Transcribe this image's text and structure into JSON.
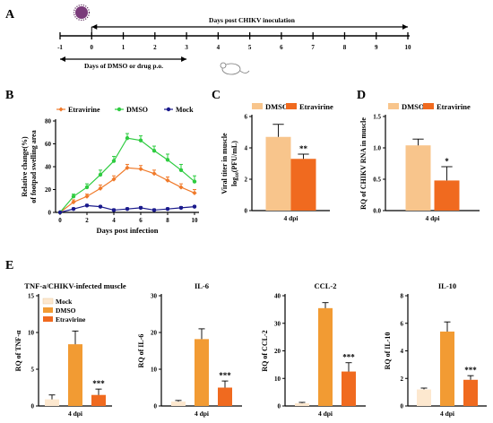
{
  "colors": {
    "dmso_light": "#f8c58c",
    "etravirine": "#f06a1f",
    "dmso_e": "#f29b33",
    "mock_bar": "#fde8cf",
    "green": "#2ecc40",
    "navy": "#1a1a8c",
    "orange_line": "#f07a2a",
    "virus": "#7a3b7a"
  },
  "panels": {
    "A": "A",
    "B": "B",
    "C": "C",
    "D": "D",
    "E": "E"
  },
  "timeline": {
    "top_label": "Days post CHIKV inoculation",
    "bottom_label": "Days of DMSO or drug p.o.",
    "ticks": [
      "-1",
      "0",
      "1",
      "2",
      "3",
      "4",
      "5",
      "6",
      "7",
      "8",
      "9",
      "10"
    ],
    "virus_icon": "virus-icon",
    "mouse_icon": "mouse-icon"
  },
  "chart_data": [
    {
      "id": "B",
      "type": "line",
      "x": [
        0,
        1,
        2,
        3,
        4,
        5,
        6,
        7,
        8,
        9,
        10
      ],
      "series": [
        {
          "name": "Etravirine",
          "values": [
            0,
            9,
            14,
            21,
            29,
            39,
            38,
            34,
            28,
            22,
            17
          ],
          "err": [
            0,
            2,
            2,
            3,
            3,
            3,
            3,
            3,
            3,
            3,
            3
          ],
          "color": "#f07a2a",
          "marker": "diamond"
        },
        {
          "name": "DMSO",
          "values": [
            0,
            14,
            22,
            33,
            45,
            65,
            63,
            54,
            46,
            37,
            27
          ],
          "err": [
            0,
            2,
            3,
            4,
            4,
            4,
            4,
            4,
            5,
            5,
            5
          ],
          "color": "#2ecc40",
          "marker": "circle"
        },
        {
          "name": "Mock",
          "values": [
            0,
            3,
            6,
            5,
            2,
            3,
            4,
            2,
            3,
            4,
            5
          ],
          "err": [
            0,
            1,
            1,
            1,
            1,
            1,
            1,
            1,
            1,
            1,
            1
          ],
          "color": "#1a1a8c",
          "marker": "circle"
        }
      ],
      "ylabel": [
        "Relative change(%)",
        "of footpad swelling area"
      ],
      "xlabel": "Days post infection",
      "xticks": [
        "0",
        "2",
        "4",
        "6",
        "8",
        "10"
      ],
      "yticks": [
        "0",
        "20",
        "40",
        "60",
        "80"
      ],
      "ylim": [
        0,
        80
      ],
      "legend": "top"
    },
    {
      "id": "C",
      "type": "bar",
      "categories": [
        "4 dpi"
      ],
      "series": [
        {
          "name": "DMSO",
          "values": [
            4.7
          ],
          "err": [
            0.8
          ],
          "color": "#f8c58c"
        },
        {
          "name": "Etravirine",
          "values": [
            3.3
          ],
          "err": [
            0.3
          ],
          "color": "#f06a1f"
        }
      ],
      "ylabel": [
        "Viral titer in muscle",
        "log10(PFU/mL)"
      ],
      "yticks": [
        "0",
        "2",
        "4",
        "6"
      ],
      "ylim": [
        0,
        6
      ],
      "sig": "**",
      "legend": "top"
    },
    {
      "id": "D",
      "type": "bar",
      "categories": [
        "4 dpi"
      ],
      "series": [
        {
          "name": "DMSO",
          "values": [
            1.04
          ],
          "err": [
            0.1
          ],
          "color": "#f8c58c"
        },
        {
          "name": "Etravirine",
          "values": [
            0.48
          ],
          "err": [
            0.22
          ],
          "color": "#f06a1f"
        }
      ],
      "ylabel": [
        "RQ of CHIKV RNA in muscle"
      ],
      "yticks": [
        "0.0",
        "0.5",
        "1.0",
        "1.5"
      ],
      "ylim": [
        0,
        1.5
      ],
      "sig": "*",
      "legend": "top"
    },
    {
      "id": "E1",
      "type": "bar",
      "title": "TNF-a/CHIKV-infected muscle",
      "categories": [
        "4 dpi"
      ],
      "series": [
        {
          "name": "Mock",
          "values": [
            0.9
          ],
          "err": [
            0.6
          ]
        },
        {
          "name": "DMSO",
          "values": [
            8.4
          ],
          "err": [
            1.8
          ]
        },
        {
          "name": "Etravirine",
          "values": [
            1.5
          ],
          "err": [
            0.8
          ]
        }
      ],
      "ylabel": [
        "RQ of TNF-α"
      ],
      "yticks": [
        "0",
        "5",
        "10",
        "15"
      ],
      "ylim": [
        0,
        15
      ],
      "sig": "***"
    },
    {
      "id": "E2",
      "type": "bar",
      "title": "IL-6",
      "categories": [
        "4 dpi"
      ],
      "series": [
        {
          "name": "Mock",
          "values": [
            1.2
          ],
          "err": [
            0.3
          ]
        },
        {
          "name": "DMSO",
          "values": [
            18.2
          ],
          "err": [
            2.8
          ]
        },
        {
          "name": "Etravirine",
          "values": [
            5.0
          ],
          "err": [
            1.8
          ]
        }
      ],
      "ylabel": [
        "RQ of IL-6"
      ],
      "yticks": [
        "0",
        "10",
        "20",
        "30"
      ],
      "ylim": [
        0,
        30
      ],
      "sig": "***"
    },
    {
      "id": "E3",
      "type": "bar",
      "title": "CCL-2",
      "categories": [
        "4 dpi"
      ],
      "series": [
        {
          "name": "Mock",
          "values": [
            1.0
          ],
          "err": [
            0.3
          ]
        },
        {
          "name": "DMSO",
          "values": [
            35.5
          ],
          "err": [
            2.0
          ]
        },
        {
          "name": "Etravirine",
          "values": [
            12.5
          ],
          "err": [
            3.2
          ]
        }
      ],
      "ylabel": [
        "RQ of CCL-2"
      ],
      "yticks": [
        "0",
        "10",
        "20",
        "30",
        "40"
      ],
      "ylim": [
        0,
        40
      ],
      "sig": "***"
    },
    {
      "id": "E4",
      "type": "bar",
      "title": "IL-10",
      "categories": [
        "4 dpi"
      ],
      "series": [
        {
          "name": "Mock",
          "values": [
            1.2
          ],
          "err": [
            0.1
          ]
        },
        {
          "name": "DMSO",
          "values": [
            5.4
          ],
          "err": [
            0.7
          ]
        },
        {
          "name": "Etravirine",
          "values": [
            1.9
          ],
          "err": [
            0.3
          ]
        }
      ],
      "ylabel": [
        "RQ of IL-10"
      ],
      "yticks": [
        "0",
        "2",
        "4",
        "6",
        "8"
      ],
      "ylim": [
        0,
        8
      ],
      "sig": "***"
    }
  ]
}
